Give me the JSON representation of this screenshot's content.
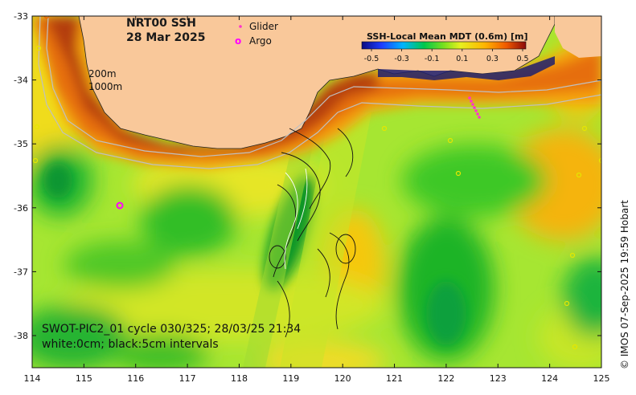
{
  "map": {
    "title_line1": "NRT00 SSH",
    "title_line2": "28 Mar 2025",
    "legend_glider": "Glider",
    "legend_argo": "Argo",
    "legend_argo_symbol": "o",
    "isobath_label_1": "200m",
    "isobath_label_2": "1000m",
    "info_line1": "SWOT-PIC2_01 cycle 030/325; 28/03/25 21:34",
    "info_line2": "white:0cm; black:5cm intervals",
    "credit": "© IMOS 07-Sep-2025 19:59 Hobart",
    "colorbar": {
      "title": "SSH-Local Mean MDT (0.6m) [m]",
      "ticks": [
        "-0.5",
        "-0.3",
        "-0.1",
        "0.1",
        "0.3",
        "0.5"
      ]
    },
    "x_axis": {
      "ticks": [
        "114",
        "115",
        "116",
        "117",
        "118",
        "119",
        "120",
        "121",
        "122",
        "123",
        "124",
        "125"
      ]
    },
    "y_axis": {
      "ticks": [
        "-33",
        "-34",
        "-35",
        "-36",
        "-37",
        "-38"
      ]
    },
    "colors": {
      "land": "#f9c89a",
      "ocean_mid": "#a6e632",
      "glider": "#ff33cc",
      "argo": "#ff00ff"
    }
  }
}
